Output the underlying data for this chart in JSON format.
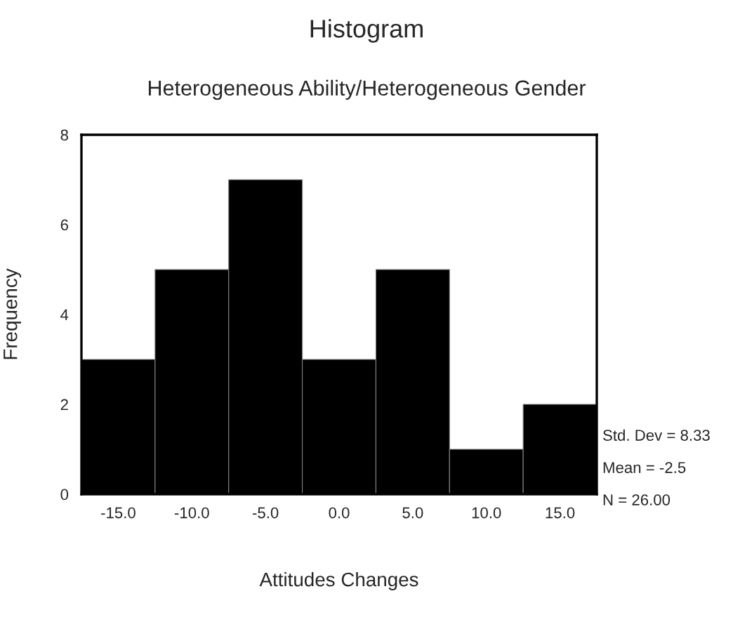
{
  "chart_data": {
    "type": "histogram",
    "title": "Histogram",
    "subtitle": "Heterogeneous Ability/Heterogeneous Gender",
    "xlabel": "Attitudes Changes",
    "ylabel": "Frequency",
    "bins": [
      -17.5,
      -12.5,
      -7.5,
      -2.5,
      2.5,
      7.5,
      12.5,
      17.5
    ],
    "values": [
      3,
      5,
      7,
      3,
      5,
      1,
      2
    ],
    "color": "#000000",
    "xlim": [
      -17.5,
      17.5
    ],
    "ylim": [
      0,
      8
    ],
    "xticks": [
      {
        "value": -15,
        "label": "-15.0"
      },
      {
        "value": -10,
        "label": "-10.0"
      },
      {
        "value": -5,
        "label": "-5.0"
      },
      {
        "value": 0,
        "label": "0.0"
      },
      {
        "value": 5,
        "label": "5.0"
      },
      {
        "value": 10,
        "label": "10.0"
      },
      {
        "value": 15,
        "label": "15.0"
      }
    ],
    "yticks": [
      0,
      2,
      4,
      6,
      8
    ],
    "grid": false,
    "annotations": [
      "Std. Dev = 8.33",
      "Mean = -2.5",
      "N = 26.00"
    ]
  }
}
